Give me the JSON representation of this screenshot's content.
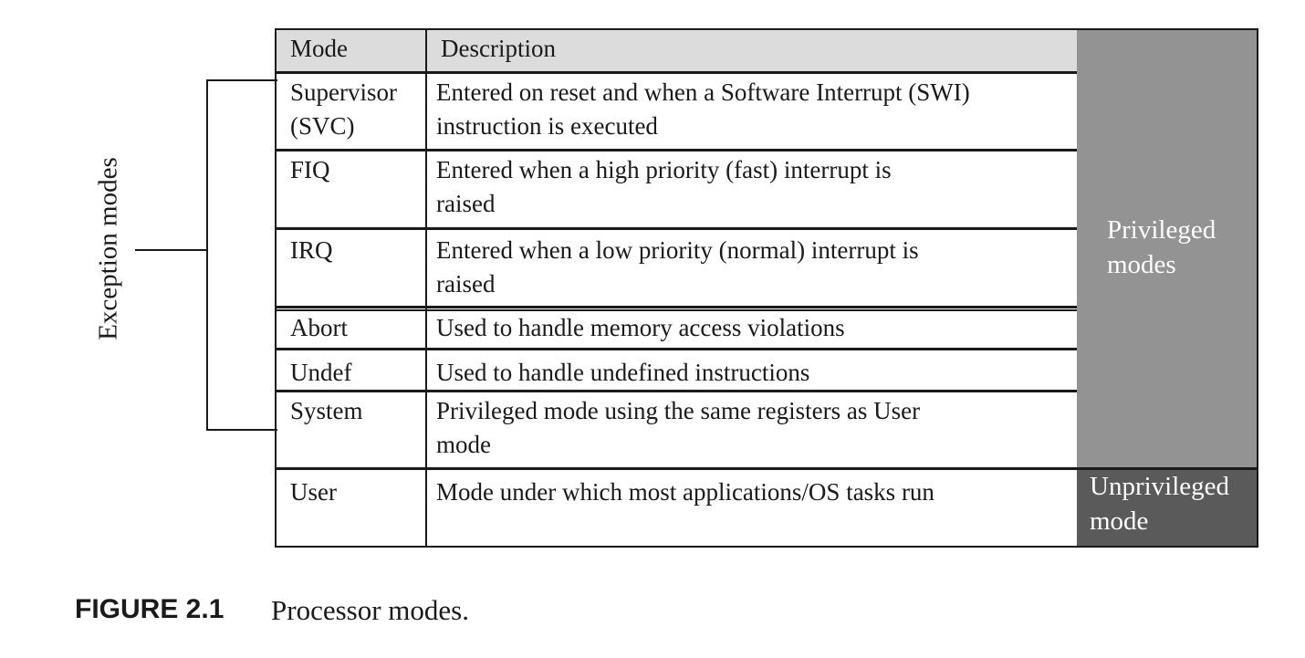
{
  "table": {
    "headers": {
      "mode": "Mode",
      "description": "Description"
    },
    "rows": [
      {
        "mode": [
          "Supervisor",
          "(SVC)"
        ],
        "description": [
          "Entered on reset and when a Software Interrupt (SWI)",
          "instruction is executed"
        ]
      },
      {
        "mode": [
          "FIQ"
        ],
        "description": [
          "Entered when a high priority (fast) interrupt is",
          "raised"
        ]
      },
      {
        "mode": [
          "IRQ"
        ],
        "description": [
          "Entered when a low priority (normal) interrupt is",
          "raised"
        ]
      },
      {
        "mode": [
          "Abort"
        ],
        "description": [
          "Used to handle memory access violations"
        ]
      },
      {
        "mode": [
          "Undef"
        ],
        "description": [
          "Used to handle undefined instructions"
        ]
      },
      {
        "mode": [
          "System"
        ],
        "description": [
          "Privileged mode using the same registers as User",
          "mode"
        ]
      },
      {
        "mode": [
          "User"
        ],
        "description": [
          "Mode under which most applications/OS tasks run"
        ]
      }
    ]
  },
  "groups": {
    "privileged": {
      "lines": [
        "Privileged",
        "modes"
      ],
      "color": "#939393"
    },
    "unprivileged": {
      "lines": [
        "Unprivileged",
        "mode"
      ],
      "color": "#5a5a5a"
    }
  },
  "bracket": {
    "label": "Exception modes"
  },
  "caption": {
    "number": "FIGURE 2.1",
    "text": "Processor modes."
  }
}
